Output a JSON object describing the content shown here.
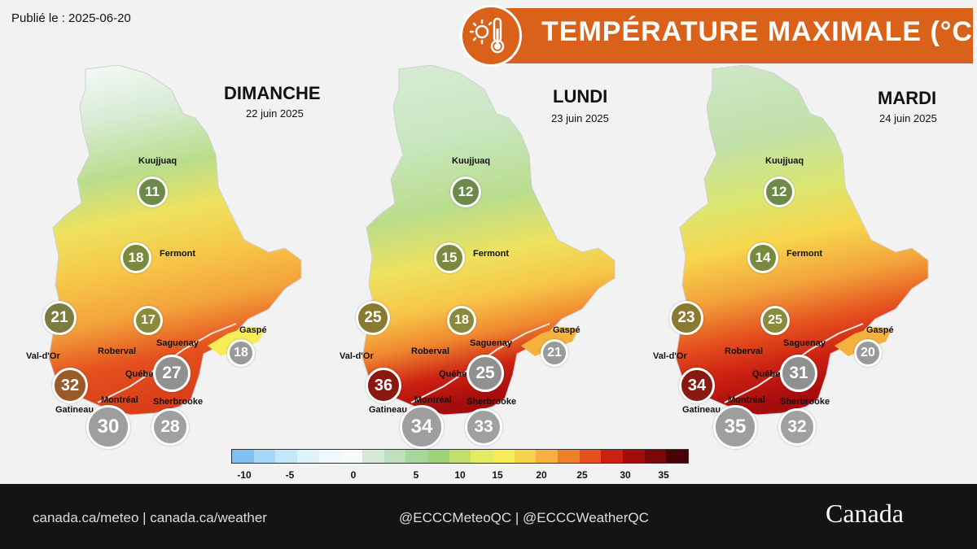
{
  "published": "Publié le : 2025-06-20",
  "banner": {
    "title": "TEMPÉRATURE MAXIMALE (°C)",
    "icon": "sun-thermometer-icon",
    "color": "#d9611a"
  },
  "panels": [
    {
      "day": "DIMANCHE",
      "date": "22 juin 2025",
      "values": {
        "kuujjuaq": "11",
        "fermont": "18",
        "west": "21",
        "saguenay_inland": "17",
        "valdor": "32",
        "quebec": "27",
        "gaspe": "18",
        "gatineau": "30",
        "sherbrooke": "28"
      }
    },
    {
      "day": "LUNDI",
      "date": "23 juin 2025",
      "values": {
        "kuujjuaq": "12",
        "fermont": "15",
        "west": "25",
        "saguenay_inland": "18",
        "valdor": "36",
        "quebec": "25",
        "gaspe": "21",
        "gatineau": "34",
        "sherbrooke": "33"
      }
    },
    {
      "day": "MARDI",
      "date": "24 juin 2025",
      "values": {
        "kuujjuaq": "12",
        "fermont": "14",
        "west": "23",
        "saguenay_inland": "25",
        "valdor": "34",
        "quebec": "31",
        "gaspe": "20",
        "gatineau": "35",
        "sherbrooke": "32"
      }
    }
  ],
  "cities": {
    "kuujjuaq": "Kuujjuaq",
    "fermont": "Fermont",
    "saguenay": "Saguenay",
    "roberval": "Roberval",
    "valdor": "Val-d'Or",
    "quebec": "Québec",
    "montreal": "Montréal",
    "gatineau": "Gatineau",
    "sherbrooke": "Sherbrooke",
    "gaspe": "Gaspé"
  },
  "legend": {
    "colors": [
      "#7fc0f0",
      "#a6d8f7",
      "#c4e8fa",
      "#def3fc",
      "#eef9fd",
      "#f6fbf8",
      "#d6ead6",
      "#bfe0bf",
      "#a8d79e",
      "#9fd17a",
      "#c2df6e",
      "#e4ea62",
      "#f7ec57",
      "#f8d44a",
      "#f5b13d",
      "#ee7f2b",
      "#e5501e",
      "#cc2012",
      "#a70c0c",
      "#7a0808",
      "#480404"
    ],
    "ticks": [
      {
        "value": "-10",
        "pos": 300
      },
      {
        "value": "-5",
        "pos": 356
      },
      {
        "value": "0",
        "pos": 434
      },
      {
        "value": "5",
        "pos": 511
      },
      {
        "value": "10",
        "pos": 565
      },
      {
        "value": "15",
        "pos": 611
      },
      {
        "value": "20",
        "pos": 665
      },
      {
        "value": "25",
        "pos": 715
      },
      {
        "value": "30",
        "pos": 768
      },
      {
        "value": "35",
        "pos": 815
      }
    ]
  },
  "footer": {
    "sites": "canada.ca/meteo | canada.ca/weather",
    "social": "@ECCCMeteoQC | @ECCCWeatherQC",
    "wordmark": "Canada"
  }
}
